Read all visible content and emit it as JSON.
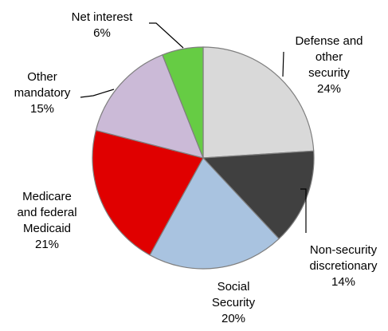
{
  "chart_data": {
    "type": "pie",
    "slices": [
      {
        "label_lines": [
          "Defense and",
          "other",
          "security"
        ],
        "pct_text": "24%",
        "value": 24,
        "color": "#d9d9d9"
      },
      {
        "label_lines": [
          "Non-security",
          "discretionary"
        ],
        "pct_text": "14%",
        "value": 14,
        "color": "#404040"
      },
      {
        "label_lines": [
          "Social",
          "Security"
        ],
        "pct_text": "20%",
        "value": 20,
        "color": "#a9c3e0"
      },
      {
        "label_lines": [
          "Medicare",
          "and federal",
          "Medicaid"
        ],
        "pct_text": "21%",
        "value": 21,
        "color": "#e00000"
      },
      {
        "label_lines": [
          "Other",
          "mandatory"
        ],
        "pct_text": "15%",
        "value": 15,
        "color": "#cbbad7"
      },
      {
        "label_lines": [
          "Net interest"
        ],
        "pct_text": "6%",
        "value": 6,
        "color": "#66cc44"
      }
    ]
  }
}
